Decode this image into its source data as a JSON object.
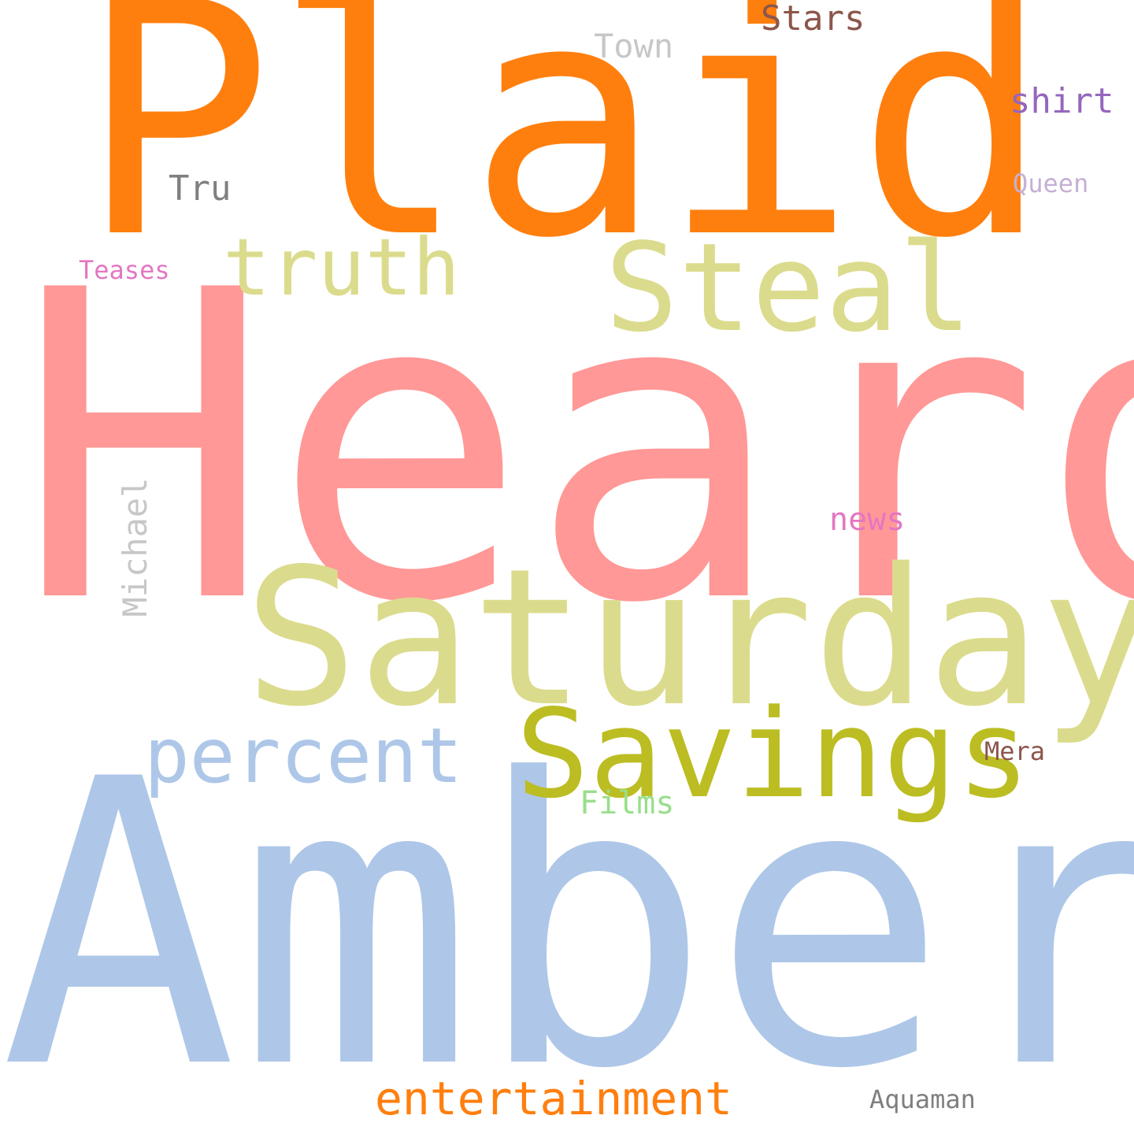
{
  "words": {
    "plaid": {
      "text": "Plaid",
      "color": "#ff7f0e"
    },
    "heard": {
      "text": "Heard",
      "color": "#ff9896"
    },
    "amber": {
      "text": "Amber",
      "color": "#aec7e8"
    },
    "saturday": {
      "text": "Saturday",
      "color": "#dbdb8d"
    },
    "savings": {
      "text": "Savings",
      "color": "#bcbd22"
    },
    "steal": {
      "text": "Steal",
      "color": "#dbdb8d"
    },
    "truth": {
      "text": "truth",
      "color": "#dbdb8d"
    },
    "percent": {
      "text": "percent",
      "color": "#aec7e8"
    },
    "entertainment": {
      "text": "entertainment",
      "color": "#ff7f0e"
    },
    "shirt": {
      "text": "shirt",
      "color": "#9467bd"
    },
    "stars": {
      "text": "Stars",
      "color": "#8c564b"
    },
    "town": {
      "text": "Town",
      "color": "#c7c7c7"
    },
    "tru": {
      "text": "Tru",
      "color": "#7f7f7f"
    },
    "news": {
      "text": "news",
      "color": "#e377c2"
    },
    "films": {
      "text": "Films",
      "color": "#98df8a"
    },
    "queen": {
      "text": "Queen",
      "color": "#c5b0d5"
    },
    "teases": {
      "text": "Teases",
      "color": "#e377c2"
    },
    "mera": {
      "text": "Mera",
      "color": "#8c564b"
    },
    "aquaman": {
      "text": "Aquaman",
      "color": "#7f7f7f"
    },
    "michael": {
      "text": "Michael",
      "color": "#c7c7c7"
    }
  }
}
